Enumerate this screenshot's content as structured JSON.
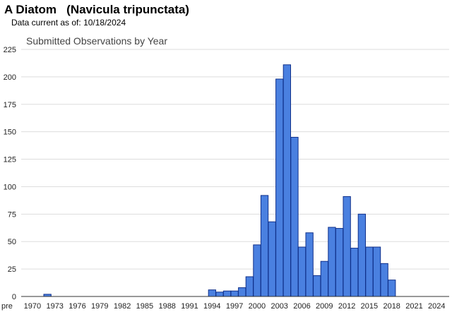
{
  "header": {
    "species_title": "A Diatom   (Navicula tripunctata)",
    "data_current_label": "Data current as of:",
    "data_current_date": "10/18/2024"
  },
  "colors": {
    "bar_fill": "#4a80e0",
    "bar_stroke": "#10308a",
    "grid": "#dddddd",
    "axis": "#333333"
  },
  "chart_data": {
    "type": "bar",
    "title": "Submitted Observations by Year",
    "xlabel": "",
    "ylabel": "",
    "ylim": [
      0,
      225
    ],
    "yticks": [
      0,
      25,
      50,
      75,
      100,
      125,
      150,
      175,
      200,
      225
    ],
    "grid": true,
    "xtick_labels": [
      "pre",
      "1970",
      "1973",
      "1976",
      "1979",
      "1982",
      "1985",
      "1988",
      "1991",
      "1994",
      "1997",
      "2000",
      "2003",
      "2006",
      "2009",
      "2012",
      "2015",
      "2018",
      "2021",
      "2024"
    ],
    "categories": [
      "pre",
      "1970",
      "1971",
      "1972",
      "1973",
      "1974",
      "1975",
      "1976",
      "1977",
      "1978",
      "1979",
      "1980",
      "1981",
      "1982",
      "1983",
      "1984",
      "1985",
      "1986",
      "1987",
      "1988",
      "1989",
      "1990",
      "1991",
      "1992",
      "1993",
      "1994",
      "1995",
      "1996",
      "1997",
      "1998",
      "1999",
      "2000",
      "2001",
      "2002",
      "2003",
      "2004",
      "2005",
      "2006",
      "2007",
      "2008",
      "2009",
      "2010",
      "2011",
      "2012",
      "2013",
      "2014",
      "2015",
      "2016",
      "2017",
      "2018",
      "2019",
      "2020",
      "2021",
      "2022",
      "2023",
      "2024"
    ],
    "values": [
      0,
      0,
      0,
      2,
      0,
      0,
      0,
      0,
      0,
      0,
      0,
      0,
      0,
      0,
      0,
      0,
      0,
      0,
      0,
      0,
      0,
      0,
      0,
      0,
      0,
      6,
      4,
      5,
      5,
      8,
      18,
      47,
      92,
      68,
      198,
      211,
      145,
      45,
      58,
      19,
      32,
      63,
      62,
      91,
      44,
      75,
      45,
      45,
      30,
      15,
      0,
      0,
      0,
      0,
      0,
      0
    ]
  }
}
